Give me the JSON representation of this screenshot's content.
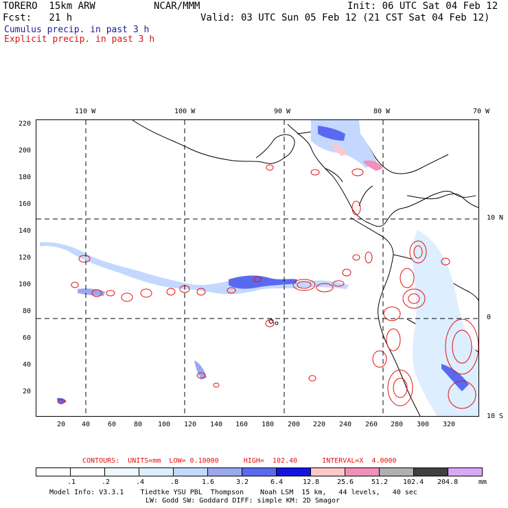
{
  "header": {
    "model": "TORERO  15km ARW",
    "org": "NCAR/MMM",
    "init": "Init: 06 UTC Sat 04 Feb 12",
    "fcst": "Fcst:   21 h",
    "valid": "Valid: 03 UTC Sun 05 Feb 12 (21 CST Sat 04 Feb 12)",
    "line_cumulus": "Cumulus precip. in past 3 h",
    "line_explicit": "Explicit precip. in past 3 h",
    "cumulus_color": "#1a1aa0",
    "explicit_color": "#e01010"
  },
  "axes": {
    "top_labels": [
      "110 W",
      "100 W",
      "90 W",
      "80 W",
      "70 W"
    ],
    "left_labels": [
      "220",
      "200",
      "180",
      "160",
      "140",
      "120",
      "100",
      "80",
      "60",
      "40",
      "20"
    ],
    "bottom_labels": [
      "20",
      "40",
      "60",
      "80",
      "100",
      "120",
      "140",
      "160",
      "180",
      "200",
      "220",
      "240",
      "260",
      "280",
      "300",
      "320"
    ],
    "right_labels": [
      "10 N",
      "0",
      "10 S"
    ]
  },
  "contour_info": "CONTOURS:  UNITS=mm  LOW= 0.10000      HIGH=  102.40      INTERVAL=X  4.0000",
  "legend": {
    "labels": [
      ".1",
      ".2",
      ".4",
      ".8",
      "1.6",
      "3.2",
      "6.4",
      "12.8",
      "25.6",
      "51.2",
      "102.4",
      "204.8",
      "mm"
    ],
    "colors": [
      "#ffffff",
      "#ffffff",
      "#eef7ff",
      "#ddeeff",
      "#c4d8ff",
      "#9aa8f0",
      "#5a6af0",
      "#1414e0",
      "#ffc8c8",
      "#f090b8",
      "#b0b0b0",
      "#404040",
      "#d8a8f8"
    ]
  },
  "footer": {
    "line1": "Model Info: V3.3.1    Tiedtke YSU PBL  Thompson    Noah LSM  15 km,   44 levels,   40 sec",
    "line2": "LW: Godd SW: Goddard DIFF: simple KM: 2D Smagor"
  }
}
